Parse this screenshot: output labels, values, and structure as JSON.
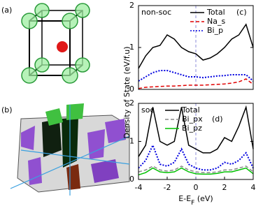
{
  "panel_labels": [
    "(a)",
    "(b)"
  ],
  "chart_data": [
    {
      "type": "line",
      "panel": "(c)",
      "note": "non-soc",
      "ylabel": "Density of State (eV/f.u)",
      "x": [
        -4,
        -3.5,
        -3,
        -2.5,
        -2,
        -1.5,
        -1,
        -0.5,
        0,
        0.5,
        1,
        1.5,
        2,
        2.5,
        3,
        3.5,
        4
      ],
      "xlim": [
        -4,
        4
      ],
      "ylim": [
        0,
        2
      ],
      "yticks": [
        0,
        1,
        2
      ],
      "vline": 0,
      "legend": "upper right",
      "series": [
        {
          "name": "Total",
          "color": "#000000",
          "dash": "solid",
          "values": [
            0.5,
            0.8,
            1.0,
            1.05,
            1.3,
            1.2,
            1.0,
            0.9,
            0.85,
            0.7,
            0.75,
            0.85,
            1.0,
            1.2,
            1.3,
            1.55,
            1.0
          ]
        },
        {
          "name": "Na_s",
          "color": "#e00000",
          "dash": "dashed",
          "values": [
            0.02,
            0.05,
            0.06,
            0.07,
            0.08,
            0.08,
            0.09,
            0.1,
            0.1,
            0.1,
            0.11,
            0.12,
            0.13,
            0.15,
            0.18,
            0.25,
            0.12
          ]
        },
        {
          "name": "Bi_p",
          "color": "#0000e0",
          "dash": "dotted",
          "values": [
            0.2,
            0.3,
            0.4,
            0.45,
            0.45,
            0.4,
            0.35,
            0.3,
            0.3,
            0.28,
            0.3,
            0.32,
            0.33,
            0.35,
            0.35,
            0.35,
            0.2
          ]
        }
      ]
    },
    {
      "type": "line",
      "panel": "(d)",
      "note": "soc",
      "xlabel": [
        "E-E",
        "F",
        " (eV)"
      ],
      "x": [
        -4,
        -3.5,
        -3,
        -2.5,
        -2,
        -1.5,
        -1,
        -0.5,
        0,
        0.5,
        1,
        1.5,
        2,
        2.5,
        3,
        3.5,
        4
      ],
      "xlim": [
        -4,
        4
      ],
      "xticks": [
        -4,
        -2,
        0,
        2,
        4
      ],
      "ylim": [
        0,
        2
      ],
      "yticks": [
        0,
        1,
        2
      ],
      "vline": 0,
      "legend": "upper left",
      "series": [
        {
          "color": "#0000e0",
          "dash": "dotted",
          "values": [
            0.3,
            0.5,
            0.9,
            0.4,
            0.35,
            0.45,
            0.8,
            0.4,
            0.3,
            0.25,
            0.25,
            0.3,
            0.45,
            0.4,
            0.5,
            0.7,
            0.3
          ]
        },
        {
          "name": "Total",
          "color": "#000000",
          "dash": "solid",
          "values": [
            0.6,
            0.9,
            1.9,
            1.0,
            0.9,
            1.0,
            1.9,
            0.9,
            0.8,
            0.7,
            0.7,
            0.8,
            1.1,
            1.0,
            1.4,
            1.9,
            0.8
          ]
        },
        {
          "name": "Bi_px",
          "color": "#888888",
          "dash": "dashed",
          "values": [
            0.2,
            0.25,
            0.35,
            0.25,
            0.22,
            0.25,
            0.35,
            0.25,
            0.2,
            0.18,
            0.18,
            0.2,
            0.25,
            0.25,
            0.3,
            0.35,
            0.2
          ]
        },
        {
          "name": "Bi_pz",
          "color": "#00c000",
          "dash": "solid",
          "values": [
            0.12,
            0.18,
            0.3,
            0.2,
            0.18,
            0.2,
            0.3,
            0.2,
            0.15,
            0.14,
            0.14,
            0.16,
            0.2,
            0.2,
            0.25,
            0.3,
            0.15
          ]
        }
      ]
    }
  ]
}
